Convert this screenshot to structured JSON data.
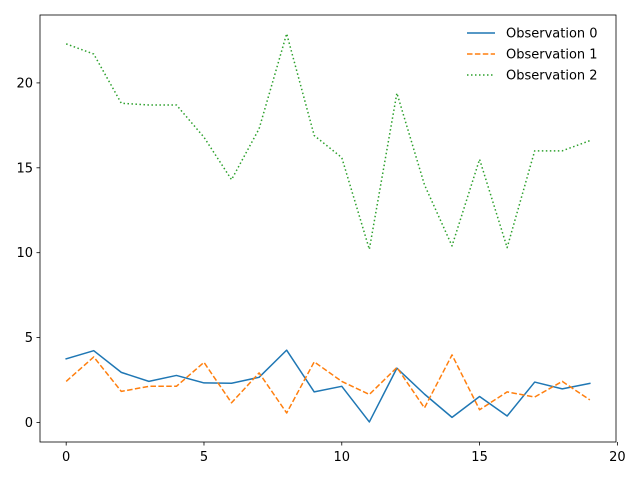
{
  "chart_data": {
    "type": "line",
    "title": "",
    "xlabel": "",
    "ylabel": "",
    "xlim": [
      -0.95,
      19.95
    ],
    "ylim": [
      -1.15,
      24.0
    ],
    "grid": false,
    "legend_position": "top-right",
    "x": [
      0,
      1,
      2,
      3,
      4,
      5,
      6,
      7,
      8,
      9,
      10,
      11,
      12,
      13,
      14,
      15,
      16,
      17,
      18,
      19
    ],
    "x_ticks": [
      0,
      5,
      10,
      15,
      20
    ],
    "x_tick_labels": [
      "0",
      "5",
      "10",
      "15",
      "20"
    ],
    "y_ticks": [
      0,
      5,
      10,
      15,
      20
    ],
    "y_tick_labels": [
      "0",
      "5",
      "10",
      "15",
      "20"
    ],
    "series": [
      {
        "name": "Observation 0",
        "color": "#1f77b4",
        "style": "solid",
        "values": [
          3.75,
          4.23,
          2.95,
          2.42,
          2.77,
          2.33,
          2.31,
          2.66,
          4.26,
          1.8,
          2.13,
          0.03,
          3.2,
          1.67,
          0.3,
          1.53,
          0.38,
          2.38,
          1.98,
          2.3
        ]
      },
      {
        "name": "Observation 1",
        "color": "#ff7f0e",
        "style": "dashed",
        "values": [
          2.42,
          3.86,
          1.83,
          2.13,
          2.13,
          3.54,
          1.16,
          2.92,
          0.56,
          3.57,
          2.42,
          1.65,
          3.24,
          0.86,
          3.98,
          0.75,
          1.8,
          1.5,
          2.42,
          1.33
        ]
      },
      {
        "name": "Observation 2",
        "color": "#2ca02c",
        "style": "dotted",
        "values": [
          22.3,
          21.7,
          18.8,
          18.7,
          18.7,
          16.8,
          14.3,
          17.3,
          22.9,
          16.9,
          15.6,
          10.2,
          19.4,
          14.0,
          10.4,
          15.5,
          10.3,
          16.0,
          16.0,
          16.6
        ]
      }
    ]
  }
}
